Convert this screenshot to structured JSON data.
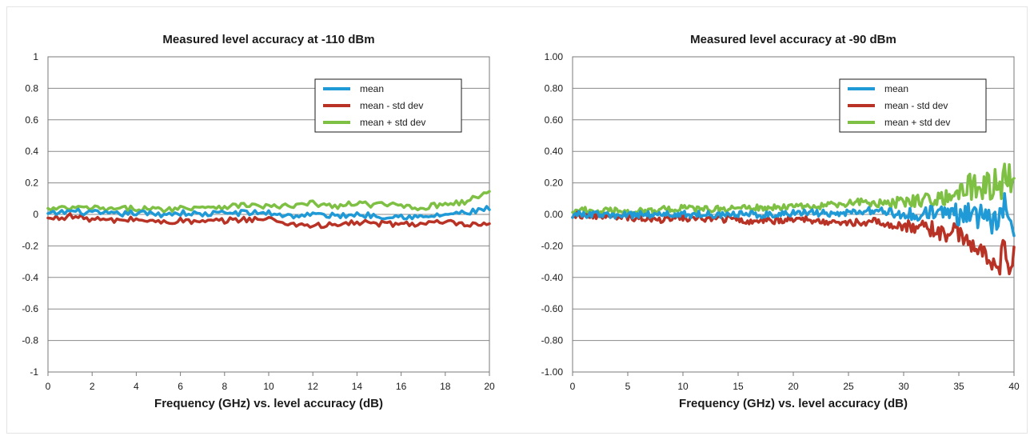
{
  "chart_data": [
    {
      "type": "line",
      "title": "Measured level accuracy  at -110 dBm",
      "xlabel": "Frequency (GHz) vs. level accuracy (dB)",
      "ylabel": "",
      "xlim": [
        0,
        20
      ],
      "ylim": [
        -1,
        1
      ],
      "xticks": [
        0,
        2,
        4,
        6,
        8,
        10,
        12,
        14,
        16,
        18,
        20
      ],
      "yticks": [
        -1,
        -0.8,
        -0.6,
        -0.4,
        -0.2,
        0,
        0.2,
        0.4,
        0.6,
        0.8,
        1
      ],
      "ytick_labels": [
        "-1",
        "-0.8",
        "-0.6",
        "-0.4",
        "-0.2",
        "0",
        "0.2",
        "0.4",
        "0.6",
        "0.8",
        "1"
      ],
      "grid": "horizontal",
      "legend_position": "top-right",
      "x": [
        0,
        1,
        2,
        3,
        4,
        5,
        6,
        7,
        8,
        9,
        10,
        11,
        12,
        13,
        14,
        15,
        16,
        17,
        18,
        19,
        20
      ],
      "series": [
        {
          "name": "mean",
          "color": "#1f9ad6",
          "values": [
            0.0,
            0.02,
            0.01,
            0.0,
            0.01,
            0.0,
            0.01,
            0.0,
            0.01,
            0.01,
            0.01,
            -0.01,
            0.0,
            -0.01,
            0.0,
            -0.01,
            -0.01,
            -0.02,
            0.0,
            0.01,
            0.04
          ]
        },
        {
          "name": "mean - std dev",
          "color": "#b83325",
          "values": [
            -0.03,
            -0.01,
            -0.03,
            -0.04,
            -0.03,
            -0.05,
            -0.04,
            -0.05,
            -0.04,
            -0.03,
            -0.03,
            -0.06,
            -0.07,
            -0.07,
            -0.05,
            -0.06,
            -0.06,
            -0.06,
            -0.05,
            -0.07,
            -0.07
          ]
        },
        {
          "name": "mean + std dev",
          "color": "#7ec043",
          "values": [
            0.03,
            0.04,
            0.04,
            0.03,
            0.04,
            0.03,
            0.04,
            0.05,
            0.05,
            0.06,
            0.05,
            0.05,
            0.07,
            0.05,
            0.07,
            0.06,
            0.06,
            0.04,
            0.07,
            0.08,
            0.15
          ]
        }
      ]
    },
    {
      "type": "line",
      "title": "Measured level accuracy  at -90 dBm",
      "xlabel": "Frequency (GHz) vs. level accuracy (dB)",
      "ylabel": "",
      "xlim": [
        0,
        40
      ],
      "ylim": [
        -1,
        1
      ],
      "xticks": [
        0,
        5,
        10,
        15,
        20,
        25,
        30,
        35,
        40
      ],
      "yticks": [
        -1,
        -0.8,
        -0.6,
        -0.4,
        -0.2,
        0,
        0.2,
        0.4,
        0.6,
        0.8,
        1
      ],
      "ytick_labels": [
        "-1.00",
        "-0.80",
        "-0.60",
        "-0.40",
        "-0.20",
        "0.00",
        "0.20",
        "0.40",
        "0.60",
        "0.80",
        "1.00"
      ],
      "grid": "horizontal",
      "legend_position": "top-right",
      "x": [
        0,
        2,
        4,
        6,
        8,
        10,
        12,
        14,
        16,
        18,
        20,
        22,
        24,
        26,
        28,
        30,
        32,
        34,
        35,
        36,
        37,
        38,
        39,
        40
      ],
      "series": [
        {
          "name": "mean",
          "color": "#1f9ad6",
          "values": [
            0.0,
            0.0,
            -0.01,
            0.0,
            0.0,
            0.0,
            0.0,
            0.0,
            0.0,
            0.0,
            0.01,
            0.01,
            0.0,
            0.02,
            0.02,
            0.0,
            0.0,
            0.01,
            0.0,
            0.02,
            0.0,
            -0.02,
            0.03,
            -0.03
          ]
        },
        {
          "name": "mean - std dev",
          "color": "#b83325",
          "values": [
            0.0,
            -0.01,
            -0.02,
            -0.02,
            -0.03,
            -0.02,
            -0.03,
            -0.03,
            -0.04,
            -0.04,
            -0.03,
            -0.04,
            -0.05,
            -0.05,
            -0.05,
            -0.07,
            -0.09,
            -0.12,
            -0.12,
            -0.18,
            -0.22,
            -0.26,
            -0.28,
            -0.3
          ]
        },
        {
          "name": "mean + std dev",
          "color": "#7ec043",
          "values": [
            0.03,
            0.02,
            0.02,
            0.02,
            0.03,
            0.04,
            0.03,
            0.04,
            0.04,
            0.04,
            0.05,
            0.05,
            0.06,
            0.08,
            0.07,
            0.08,
            0.1,
            0.12,
            0.13,
            0.18,
            0.16,
            0.18,
            0.22,
            0.2
          ]
        }
      ]
    }
  ]
}
